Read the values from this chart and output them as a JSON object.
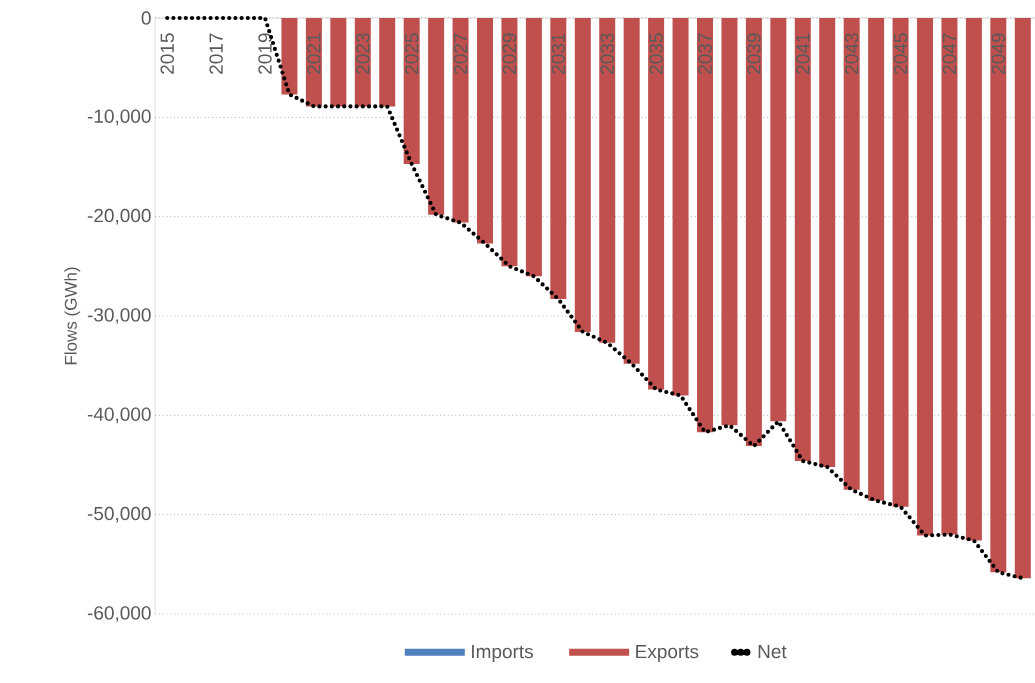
{
  "chart_data": {
    "type": "bar",
    "ylabel": "Flows (GWh)",
    "categories": [
      "2015",
      null,
      "2017",
      null,
      "2019",
      null,
      "2021",
      null,
      "2023",
      null,
      "2025",
      null,
      "2027",
      null,
      "2029",
      null,
      "2031",
      null,
      "2033",
      null,
      "2035",
      null,
      "2037",
      null,
      "2039",
      null,
      "2041",
      null,
      "2043",
      null,
      "2045",
      null,
      "2047",
      null,
      "2049",
      null
    ],
    "series": [
      {
        "name": "Imports",
        "color": "#4f81bd",
        "values": [
          0,
          0,
          0,
          0,
          0,
          0,
          0,
          0,
          0,
          0,
          0,
          0,
          0,
          0,
          0,
          0,
          0,
          0,
          0,
          0,
          0,
          0,
          0,
          0,
          0,
          0,
          0,
          0,
          0,
          0,
          0,
          0,
          0,
          0,
          0,
          0
        ]
      },
      {
        "name": "Exports",
        "color": "#c0504d",
        "values": [
          0,
          0,
          0,
          0,
          0,
          -7700,
          -8900,
          -8900,
          -8900,
          -8900,
          -14700,
          -19800,
          -20600,
          -22700,
          -25000,
          -26000,
          -28300,
          -31600,
          -32700,
          -34800,
          -37400,
          -38000,
          -41700,
          -41000,
          -43100,
          -40600,
          -44600,
          -45200,
          -47500,
          -48600,
          -49200,
          -52100,
          -52000,
          -52600,
          -55800,
          -56400
        ]
      },
      {
        "name": "Net",
        "type": "line",
        "color": "#000000",
        "line_style": "dotted",
        "values": [
          0,
          0,
          0,
          0,
          0,
          -7700,
          -8900,
          -8900,
          -8900,
          -8900,
          -14700,
          -19800,
          -20600,
          -22700,
          -25000,
          -26000,
          -28300,
          -31600,
          -32700,
          -34800,
          -37400,
          -38000,
          -41700,
          -41000,
          -43100,
          -40600,
          -44600,
          -45200,
          -47500,
          -48600,
          -49200,
          -52100,
          -52000,
          -52600,
          -55800,
          -56400
        ]
      }
    ],
    "stacked": true,
    "ylim": [
      -60000,
      0
    ],
    "yticks": [
      0,
      {
        "value": -10000,
        "label": "-10,000"
      },
      {
        "value": -20000,
        "label": "-20,000"
      },
      {
        "value": -30000,
        "label": "-30,000"
      },
      {
        "value": -40000,
        "label": "-40,000"
      },
      {
        "value": -50000,
        "label": "-50,000"
      },
      {
        "value": -60000,
        "label": "-60,000"
      }
    ],
    "grid": "y",
    "legend": "bottom"
  }
}
